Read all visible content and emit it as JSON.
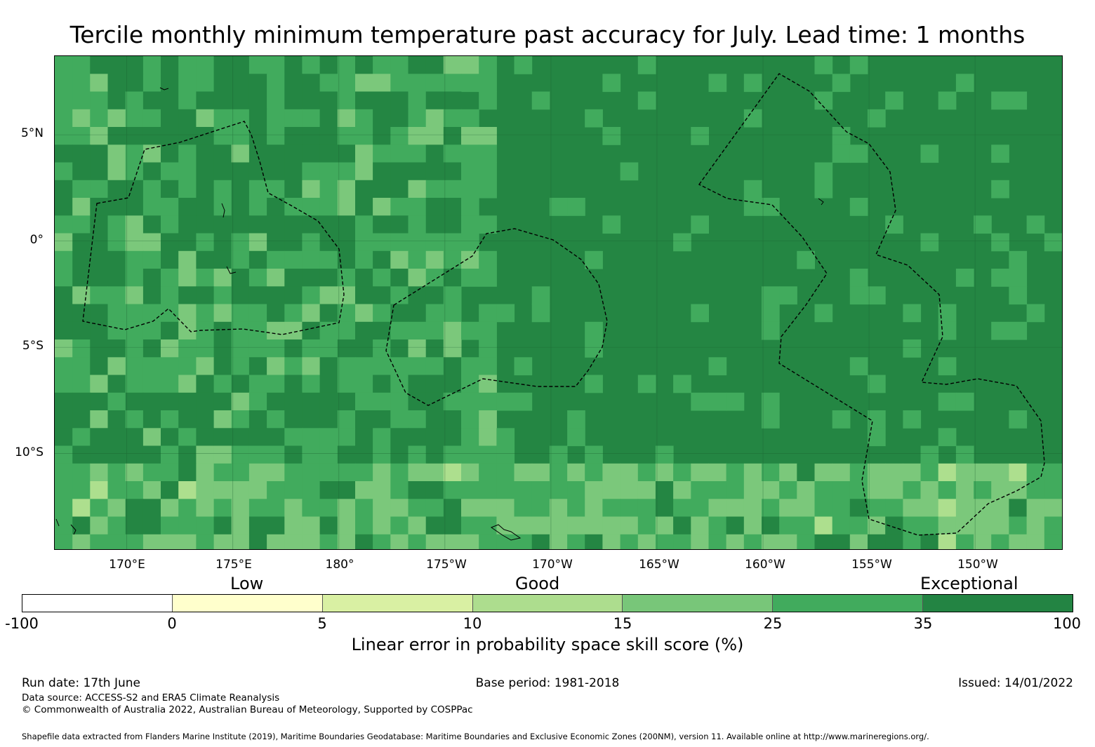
{
  "title": "Tercile monthly minimum temperature past accuracy for July. Lead time: 1 months",
  "map": {
    "latitude_labels": [
      "5°N",
      "0°",
      "5°S",
      "10°S"
    ],
    "longitude_labels": [
      "170°E",
      "175°E",
      "180°",
      "175°W",
      "170°W",
      "165°W",
      "160°W",
      "155°W",
      "150°W"
    ],
    "lon_range_deg_east": [
      166.6,
      214.1
    ],
    "lat_range_deg": [
      -14.5,
      8.7
    ],
    "grid": true,
    "cell_colors": {
      "moderate": "#7bc87b",
      "good": "#41ab5d",
      "exceptional": "#248643",
      "light": "#addf8e"
    },
    "boundary_style": "dashed black line (EEZ boundaries)"
  },
  "legend": {
    "categories": [
      "Low",
      "Good",
      "Exceptional"
    ],
    "ticks": [
      "-100",
      "0",
      "5",
      "10",
      "15",
      "25",
      "35",
      "100"
    ],
    "colors": [
      "#ffffff",
      "#ffffcc",
      "#d9f0a3",
      "#addd8e",
      "#78c679",
      "#41ab5d",
      "#238443"
    ],
    "label": "Linear error in probability space skill score (%)"
  },
  "footer": {
    "run_date": "Run date: 17th June",
    "base_period": "Base period: 1981-2018",
    "issued": "Issued: 14/01/2022",
    "data_source": "Data source: ACCESS-S2 and ERA5 Climate Reanalysis",
    "copyright": "© Commonwealth of Australia 2022, Australian Bureau of Meteorology, Supported by COSPPac",
    "shapefile": "Shapefile data extracted from Flanders Marine Institute (2019), Maritime Boundaries Geodatabase: Maritime Boundaries and Exclusive Economic Zones (200NM), version 11. Available online at http://www.marineregions.org/."
  }
}
